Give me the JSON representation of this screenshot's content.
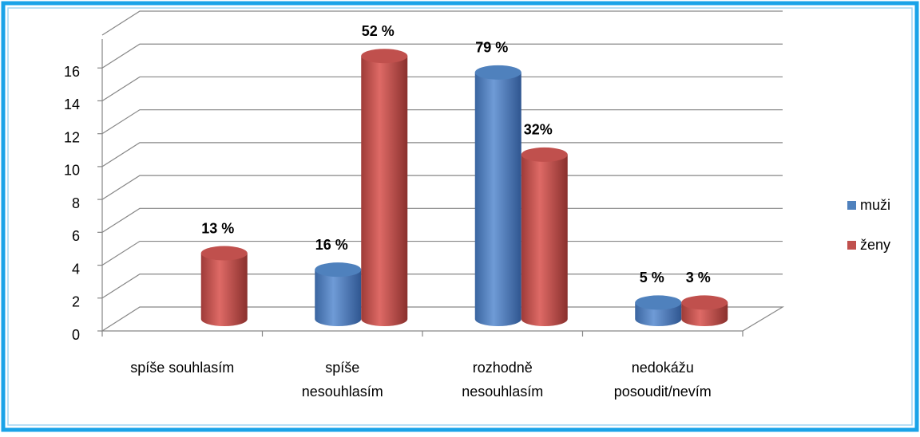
{
  "chart_data": {
    "type": "bar3d",
    "categories": [
      "spíše souhlasím",
      "spíše\nnesouhlasím",
      "rozhodně\nnesouhlasím",
      "nedokážu\nposoudit/nevím"
    ],
    "series": [
      {
        "name": "muži",
        "color": "#4f81bd",
        "values": [
          0,
          3,
          15,
          1
        ],
        "value_labels": [
          null,
          "16 %",
          "79 %",
          "5 %"
        ]
      },
      {
        "name": "ženy",
        "color": "#c0504d",
        "values": [
          4,
          16,
          10,
          1
        ],
        "value_labels": [
          "13 %",
          "52 %",
          "32%",
          "3 %"
        ]
      }
    ],
    "ylim": [
      0,
      18
    ],
    "yticks": [
      0,
      2,
      4,
      6,
      8,
      10,
      12,
      14,
      16
    ],
    "grid": true,
    "legend": "right"
  }
}
